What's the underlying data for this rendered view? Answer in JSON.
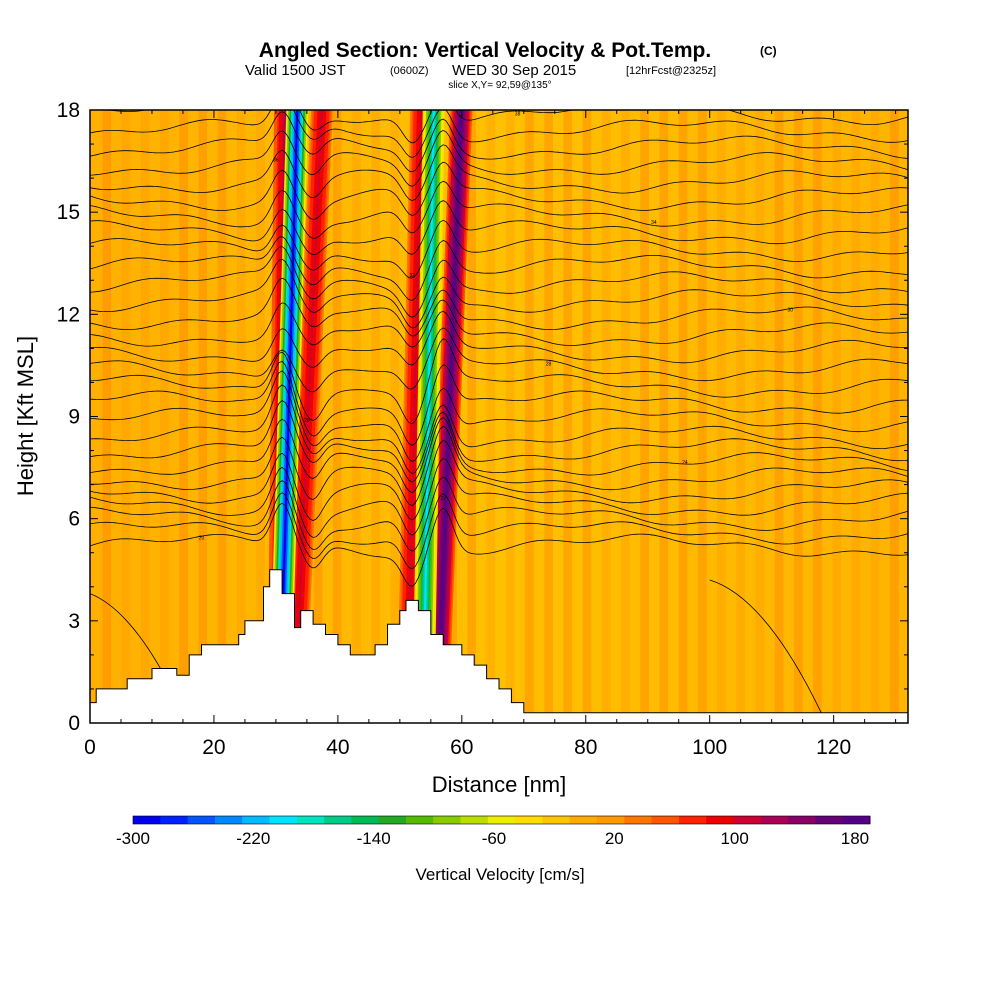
{
  "chart_data": {
    "type": "heatmap",
    "title": "Angled Section: Vertical Velocity & Pot.Temp.",
    "title_units": "(C)",
    "subtitle_valid": "Valid 1500 JST",
    "subtitle_utc": "(0600Z)",
    "subtitle_date": "WED 30 Sep 2015",
    "subtitle_run": "[12hrFcst@2325z]",
    "slice_text": "slice X,Y= 92,59@135°",
    "xlabel": "Distance [nm]",
    "ylabel": "Height [Kft MSL]",
    "xlim": [
      0,
      132
    ],
    "ylim": [
      0,
      18
    ],
    "x_ticks": [
      "0",
      "20",
      "40",
      "60",
      "80",
      "100",
      "120"
    ],
    "x_tick_values": [
      0,
      20,
      40,
      60,
      80,
      100,
      120
    ],
    "y_ticks": [
      "0",
      "3",
      "6",
      "9",
      "12",
      "15",
      "18"
    ],
    "y_tick_values": [
      0,
      3,
      6,
      9,
      12,
      15,
      18
    ],
    "colorbar": {
      "label": "Vertical Velocity [cm/s]",
      "tick_labels": [
        "-300",
        "-220",
        "-140",
        "-60",
        "20",
        "100",
        "180"
      ],
      "min": -300,
      "max": 190,
      "colors": [
        "#0000ee",
        "#0022ff",
        "#0055ff",
        "#0088ff",
        "#00bbff",
        "#00e5ff",
        "#00e5c0",
        "#00cc88",
        "#00bb55",
        "#22aa22",
        "#55bb00",
        "#88cc00",
        "#bbdd00",
        "#eeee00",
        "#ffdd00",
        "#ffc400",
        "#ffaa00",
        "#ff9900",
        "#ff7700",
        "#ff5500",
        "#ff2200",
        "#ee0000",
        "#cc0033",
        "#aa0055",
        "#880066",
        "#660077",
        "#550088"
      ]
    },
    "background_field_cm_s": 20,
    "updraft_bands": [
      {
        "x_top": 31.5,
        "x_bottom": 30.5,
        "peak": 120
      },
      {
        "x_top": 37.5,
        "x_bottom": 33.5,
        "peak": 110
      },
      {
        "x_top": 53.5,
        "x_bottom": 51.5,
        "peak": 110
      },
      {
        "x_top": 60.0,
        "x_bottom": 56.5,
        "peak": 180
      }
    ],
    "downdraft_bands": [
      {
        "x_top": 33.5,
        "x_bottom": 31.0,
        "peak": -290
      },
      {
        "x_top": 55.5,
        "x_bottom": 54.0,
        "peak": -200
      }
    ],
    "terrain": [
      [
        0,
        0.6
      ],
      [
        1,
        1.0
      ],
      [
        6,
        1.3
      ],
      [
        10,
        1.6
      ],
      [
        14,
        1.4
      ],
      [
        16,
        2.0
      ],
      [
        18,
        2.3
      ],
      [
        24,
        2.6
      ],
      [
        25,
        3.0
      ],
      [
        28,
        4.0
      ],
      [
        29,
        4.5
      ],
      [
        31,
        3.8
      ],
      [
        33,
        2.8
      ],
      [
        34,
        3.3
      ],
      [
        36,
        2.9
      ],
      [
        38,
        2.6
      ],
      [
        40,
        2.3
      ],
      [
        42,
        2.0
      ],
      [
        44,
        2.0
      ],
      [
        46,
        2.3
      ],
      [
        48,
        2.9
      ],
      [
        50,
        3.3
      ],
      [
        51,
        3.6
      ],
      [
        53,
        3.3
      ],
      [
        55,
        2.6
      ],
      [
        57,
        2.3
      ],
      [
        60,
        2.0
      ],
      [
        62,
        1.7
      ],
      [
        64,
        1.3
      ],
      [
        66,
        1.0
      ],
      [
        68,
        0.6
      ],
      [
        70,
        0.3
      ],
      [
        132,
        0.3
      ]
    ],
    "theta_isentropes": {
      "base_heights_kft": [
        5.2,
        5.6,
        6.0,
        6.4,
        6.8,
        7.2,
        7.6,
        8.0,
        8.4,
        8.9,
        9.4,
        9.9,
        10.4,
        10.9,
        11.4,
        11.9,
        12.4,
        12.9,
        13.4,
        13.9,
        14.4,
        14.9,
        15.4,
        15.9,
        16.4,
        16.9,
        17.4,
        17.9
      ],
      "labels": [
        "20",
        "22",
        "24",
        "26",
        "28",
        "30",
        "32",
        "34",
        "36",
        "38",
        "40"
      ]
    }
  }
}
